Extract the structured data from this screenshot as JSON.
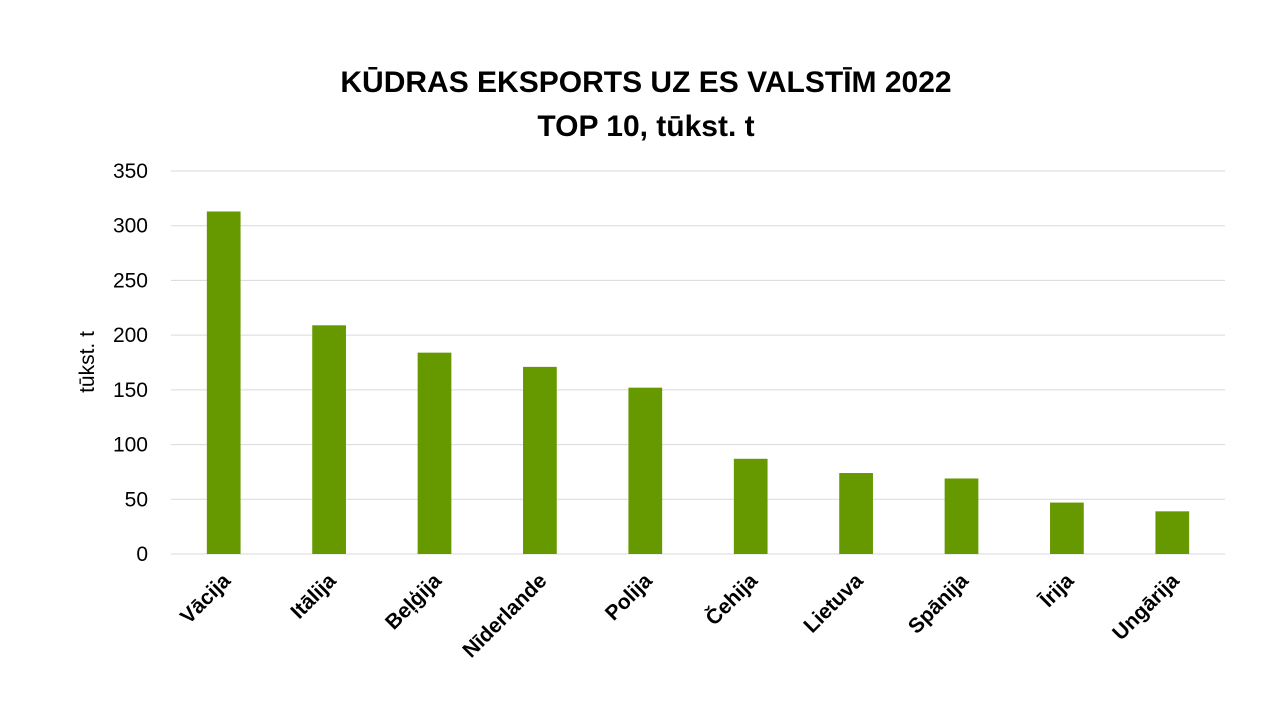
{
  "chart_data": {
    "type": "bar",
    "title": "KŪDRAS EKSPORTS UZ ES VALSTĪM 2022",
    "subtitle": "TOP 10, tūkst. t",
    "xlabel": "",
    "ylabel": "tūkst. t",
    "categories": [
      "Vācija",
      "Itālija",
      "Beļģija",
      "Nīderlande",
      "Polija",
      "Čehija",
      "Lietuva",
      "Spānija",
      "Īrija",
      "Ungārija"
    ],
    "values": [
      313,
      209,
      184,
      171,
      152,
      87,
      74,
      69,
      47,
      39
    ],
    "ylim": [
      0,
      350
    ],
    "yticks": [
      0,
      50,
      100,
      150,
      200,
      250,
      300,
      350
    ],
    "grid": true,
    "legend": "none",
    "bar_color": "#669900"
  }
}
